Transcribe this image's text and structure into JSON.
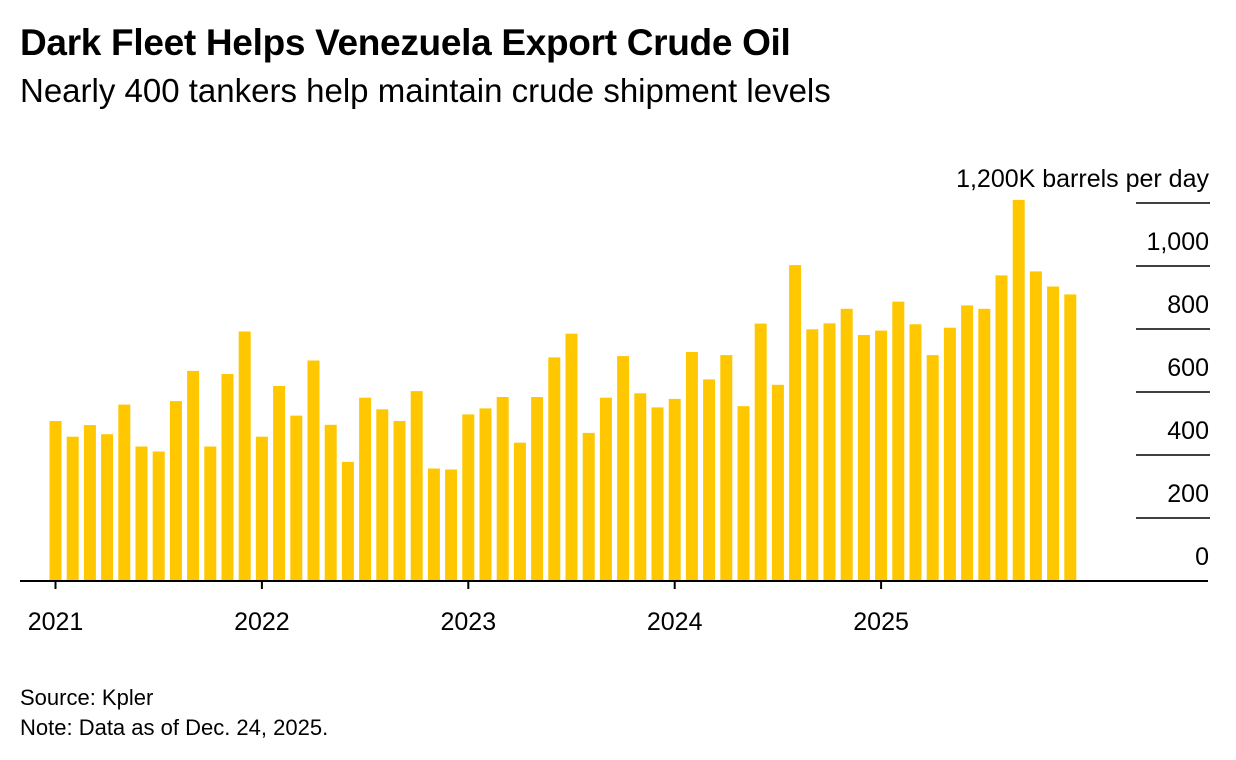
{
  "header": {
    "title": "Dark Fleet Helps Venezuela Export Crude Oil",
    "subtitle": "Nearly 400 tankers help maintain crude shipment levels"
  },
  "footer": {
    "source": "Source: Kpler",
    "note": "Note: Data as of Dec. 24, 2025."
  },
  "colors": {
    "bar": "#FFC700",
    "axis": "#000000",
    "text": "#000000"
  },
  "chart_data": {
    "type": "bar",
    "title": "Dark Fleet Helps Venezuela Export Crude Oil",
    "subtitle": "Nearly 400 tankers help maintain crude shipment levels",
    "xlabel": "",
    "ylabel": "K barrels per day",
    "y_unit_label": "1,200K barrels per day",
    "ylim": [
      0,
      1200
    ],
    "y_ticks": [
      {
        "value": 1200,
        "label": "1,200K barrels per day"
      },
      {
        "value": 1000,
        "label": "1,000"
      },
      {
        "value": 800,
        "label": "800"
      },
      {
        "value": 600,
        "label": "600"
      },
      {
        "value": 400,
        "label": "400"
      },
      {
        "value": 200,
        "label": "200"
      },
      {
        "value": 0,
        "label": "0"
      }
    ],
    "x_ticks": [
      {
        "index": 0,
        "label": "2021"
      },
      {
        "index": 12,
        "label": "2022"
      },
      {
        "index": 24,
        "label": "2023"
      },
      {
        "index": 36,
        "label": "2024"
      },
      {
        "index": 48,
        "label": "2025"
      }
    ],
    "grid": false,
    "legend": "none",
    "categories": [
      "Jan 2021",
      "Feb 2021",
      "Mar 2021",
      "Apr 2021",
      "May 2021",
      "Jun 2021",
      "Jul 2021",
      "Aug 2021",
      "Sep 2021",
      "Oct 2021",
      "Nov 2021",
      "Dec 2021",
      "Jan 2022",
      "Feb 2022",
      "Mar 2022",
      "Apr 2022",
      "May 2022",
      "Jun 2022",
      "Jul 2022",
      "Aug 2022",
      "Sep 2022",
      "Oct 2022",
      "Nov 2022",
      "Dec 2022",
      "Jan 2023",
      "Feb 2023",
      "Mar 2023",
      "Apr 2023",
      "May 2023",
      "Jun 2023",
      "Jul 2023",
      "Aug 2023",
      "Sep 2023",
      "Oct 2023",
      "Nov 2023",
      "Dec 2023",
      "Jan 2024",
      "Feb 2024",
      "Mar 2024",
      "Apr 2024",
      "May 2024",
      "Jun 2024",
      "Jul 2024",
      "Aug 2024",
      "Sep 2024",
      "Oct 2024",
      "Nov 2024",
      "Dec 2024",
      "Jan 2025",
      "Feb 2025",
      "Mar 2025",
      "Apr 2025",
      "May 2025",
      "Jun 2025",
      "Jul 2025",
      "Aug 2025",
      "Sep 2025",
      "Oct 2025",
      "Nov 2025",
      "Dec 2025"
    ],
    "values": [
      508,
      458,
      495,
      466,
      560,
      427,
      411,
      571,
      667,
      427,
      657,
      792,
      458,
      619,
      525,
      700,
      496,
      378,
      582,
      545,
      508,
      603,
      357,
      354,
      529,
      548,
      584,
      439,
      584,
      710,
      785,
      470,
      582,
      714,
      596,
      551,
      578,
      727,
      640,
      717,
      555,
      817,
      623,
      1003,
      799,
      818,
      864,
      781,
      795,
      887,
      815,
      717,
      804,
      875,
      864,
      970,
      1210,
      983,
      935,
      910
    ]
  }
}
